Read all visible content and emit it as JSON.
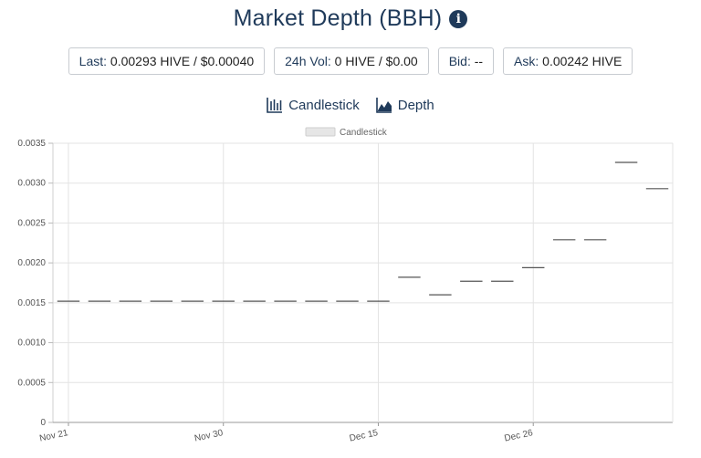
{
  "header": {
    "title": "Market Depth (BBH)",
    "info_icon": "info-circle-icon"
  },
  "stats": [
    {
      "label": "Last:",
      "value": "0.00293 HIVE / $0.00040"
    },
    {
      "label": "24h Vol:",
      "value": "0 HIVE / $0.00"
    },
    {
      "label": "Bid:",
      "value": "--"
    },
    {
      "label": "Ask:",
      "value": "0.00242 HIVE"
    }
  ],
  "tabs": [
    {
      "label": "Candlestick",
      "icon": "candlestick-chart-icon"
    },
    {
      "label": "Depth",
      "icon": "depth-chart-icon"
    }
  ],
  "colors": {
    "accent": "#1f3a5a",
    "grid": "#e3e3e3",
    "candle": "#555555",
    "legend_swatch": "#e6e6e6"
  },
  "chart_data": {
    "type": "candlestick",
    "legend": [
      "Candlestick"
    ],
    "legend_position": "top-center",
    "ylim": [
      0,
      0.0035
    ],
    "yticks": [
      "0",
      "0.0005",
      "0.0010",
      "0.0015",
      "0.0020",
      "0.0025",
      "0.0030",
      "0.0035"
    ],
    "xticks": [
      "Nov 21",
      "Nov 30",
      "Dec 15",
      "Dec 26"
    ],
    "grid": true,
    "series": [
      {
        "values": [
          0.00152,
          0.00152,
          0.00152,
          0.00152,
          0.00152,
          0.00152,
          0.00152,
          0.00152,
          0.00152,
          0.00152,
          0.00152,
          0.00182,
          0.0016,
          0.00177,
          0.00177,
          0.00194,
          0.00229,
          0.00229,
          0.00326,
          0.00293
        ]
      }
    ]
  }
}
